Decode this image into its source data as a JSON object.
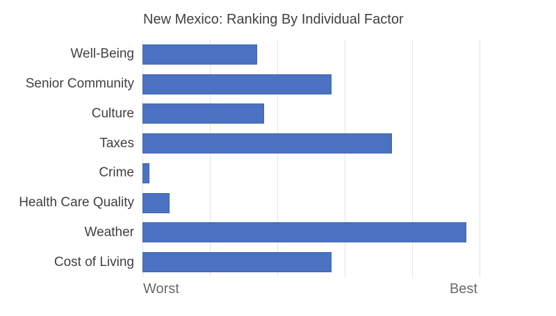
{
  "chart_data": {
    "type": "bar",
    "orientation": "horizontal",
    "title": "New Mexico: Ranking By Individual Factor",
    "categories": [
      "Well-Being",
      "Senior Community",
      "Culture",
      "Taxes",
      "Crime",
      "Health Care Quality",
      "Weather",
      "Cost of Living"
    ],
    "values": [
      17,
      28,
      18,
      37,
      1,
      4,
      48,
      28
    ],
    "xlim": [
      0,
      50
    ],
    "gridline_interval": 10,
    "grid": true,
    "legend": "none",
    "axis_endpoint_labels": {
      "left": "Worst",
      "right": "Best"
    },
    "colors": {
      "bar_fill": "#4a72c0",
      "bar_border": "#3d63ae",
      "gridline": "#e3e3e3",
      "title_text": "#404040",
      "category_text": "#404040",
      "axis_text": "#696969",
      "background": "#ffffff"
    }
  }
}
